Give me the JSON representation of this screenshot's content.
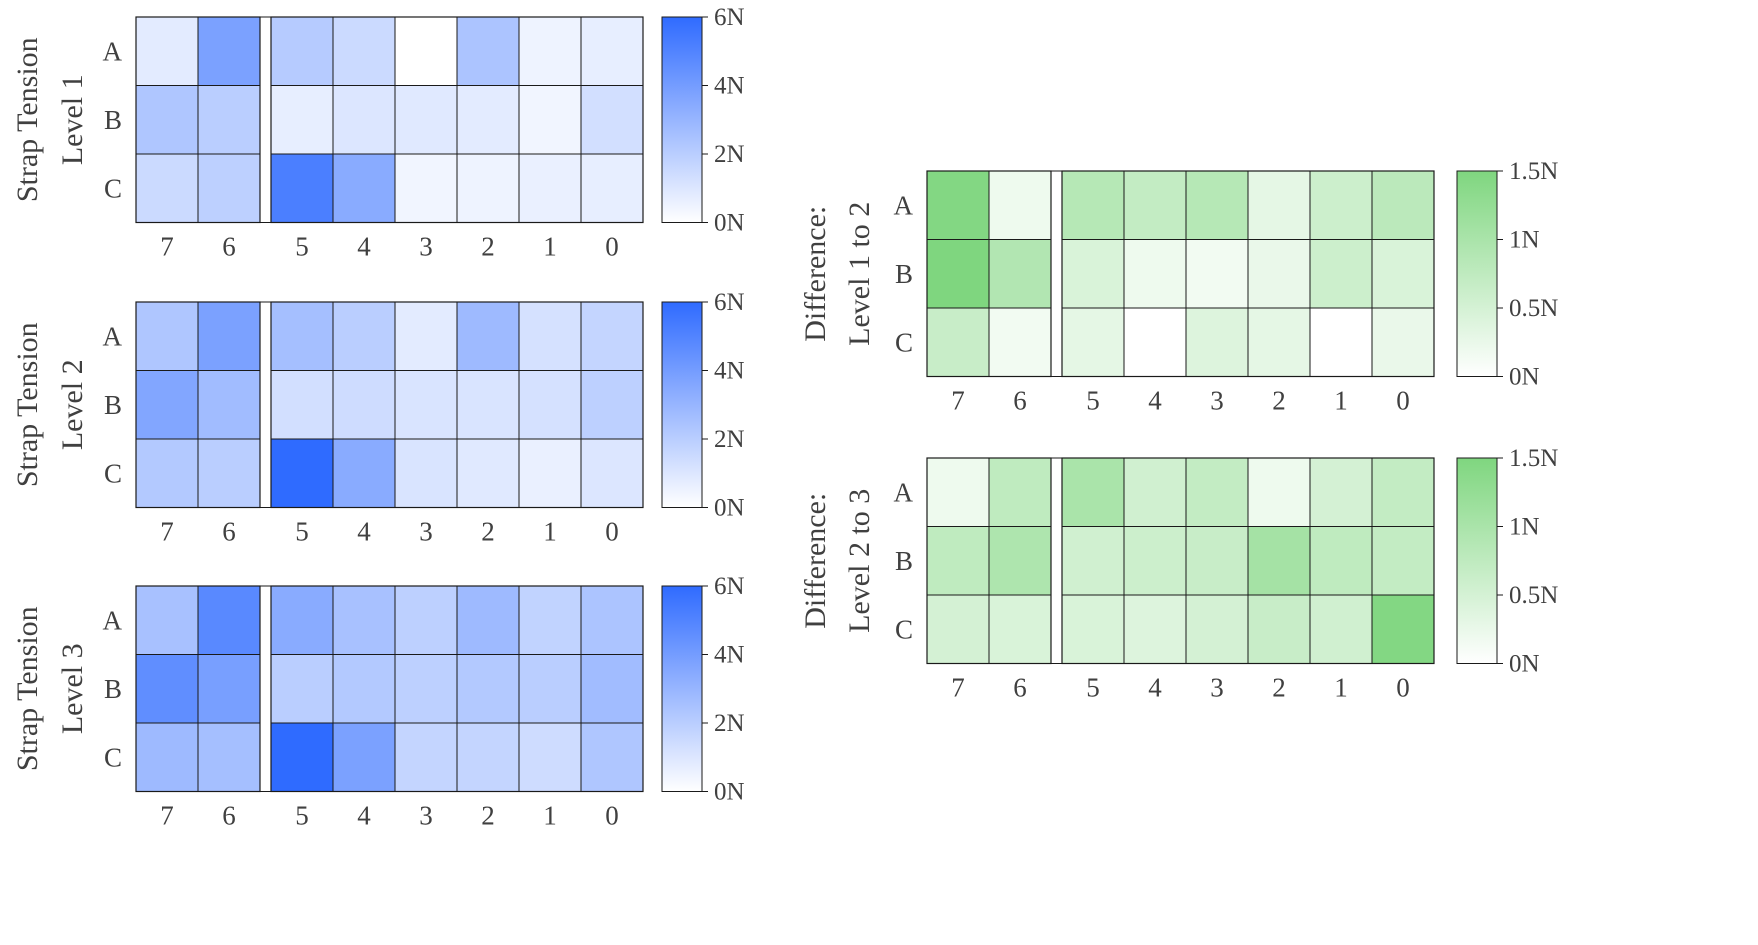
{
  "colors": {
    "tension_max": "#2f6bff",
    "difference_max": "#7fd67f",
    "min": "#ffffff",
    "cell_border": "#1a1a1a",
    "text": "#404040"
  },
  "chart_data": [
    {
      "type": "heatmap",
      "ylabel_lines": [
        "Strap Tension",
        "Level 1"
      ],
      "rows": [
        "A",
        "B",
        "C"
      ],
      "columns": [
        "7",
        "6",
        "5",
        "4",
        "3",
        "2",
        "1",
        "0"
      ],
      "gap_after_column": 1,
      "values": [
        [
          0.8,
          3.8,
          2.1,
          1.5,
          0.0,
          2.4,
          0.5,
          0.7
        ],
        [
          2.3,
          2.0,
          0.7,
          1.0,
          0.9,
          0.8,
          0.4,
          1.3
        ],
        [
          1.5,
          1.9,
          5.2,
          3.4,
          0.4,
          0.5,
          0.6,
          0.7
        ]
      ],
      "colorbar": {
        "range": [
          0,
          6
        ],
        "ticks": [
          "0N",
          "2N",
          "4N",
          "6N"
        ],
        "color_max": "#2f6bff"
      }
    },
    {
      "type": "heatmap",
      "ylabel_lines": [
        "Strap Tension",
        "Level 2"
      ],
      "rows": [
        "A",
        "B",
        "C"
      ],
      "columns": [
        "7",
        "6",
        "5",
        "4",
        "3",
        "2",
        "1",
        "0"
      ],
      "gap_after_column": 1,
      "values": [
        [
          2.3,
          3.8,
          2.6,
          2.0,
          0.8,
          2.8,
          1.2,
          1.7
        ],
        [
          3.6,
          2.7,
          1.3,
          1.4,
          1.1,
          1.1,
          1.2,
          1.9
        ],
        [
          2.2,
          2.0,
          6.0,
          3.4,
          1.1,
          0.9,
          0.6,
          1.0
        ]
      ],
      "colorbar": {
        "range": [
          0,
          6
        ],
        "ticks": [
          "0N",
          "2N",
          "4N",
          "6N"
        ],
        "color_max": "#2f6bff"
      }
    },
    {
      "type": "heatmap",
      "ylabel_lines": [
        "Strap Tension",
        "Level 3"
      ],
      "rows": [
        "A",
        "B",
        "C"
      ],
      "columns": [
        "7",
        "6",
        "5",
        "4",
        "3",
        "2",
        "1",
        "0"
      ],
      "gap_after_column": 1,
      "values": [
        [
          2.5,
          4.8,
          3.4,
          2.5,
          1.9,
          2.8,
          1.8,
          2.4
        ],
        [
          4.6,
          3.9,
          2.0,
          2.2,
          1.9,
          2.2,
          2.0,
          2.7
        ],
        [
          2.8,
          2.6,
          6.0,
          3.8,
          1.7,
          1.7,
          1.4,
          2.3
        ]
      ],
      "colorbar": {
        "range": [
          0,
          6
        ],
        "ticks": [
          "0N",
          "2N",
          "4N",
          "6N"
        ],
        "color_max": "#2f6bff"
      }
    },
    {
      "type": "heatmap",
      "ylabel_lines": [
        "Difference:",
        "Level 1 to 2"
      ],
      "rows": [
        "A",
        "B",
        "C"
      ],
      "columns": [
        "7",
        "6",
        "5",
        "4",
        "3",
        "2",
        "1",
        "0"
      ],
      "gap_after_column": 1,
      "values": [
        [
          1.45,
          0.2,
          0.85,
          0.7,
          0.85,
          0.3,
          0.6,
          0.8
        ],
        [
          1.5,
          0.9,
          0.45,
          0.2,
          0.15,
          0.25,
          0.6,
          0.45
        ],
        [
          0.65,
          0.15,
          0.3,
          0.0,
          0.4,
          0.3,
          0.0,
          0.25
        ]
      ],
      "colorbar": {
        "range": [
          0,
          1.5
        ],
        "ticks": [
          "0N",
          "0.5N",
          "1N",
          "1.5N"
        ],
        "color_max": "#7fd67f"
      }
    },
    {
      "type": "heatmap",
      "ylabel_lines": [
        "Difference:",
        "Level 2 to 3"
      ],
      "rows": [
        "A",
        "B",
        "C"
      ],
      "columns": [
        "7",
        "6",
        "5",
        "4",
        "3",
        "2",
        "1",
        "0"
      ],
      "gap_after_column": 1,
      "values": [
        [
          0.2,
          0.75,
          1.0,
          0.55,
          0.7,
          0.2,
          0.5,
          0.7
        ],
        [
          0.75,
          0.95,
          0.55,
          0.6,
          0.65,
          1.05,
          0.75,
          0.7
        ],
        [
          0.5,
          0.45,
          0.45,
          0.4,
          0.5,
          0.65,
          0.55,
          1.45
        ]
      ],
      "colorbar": {
        "range": [
          0,
          1.5
        ],
        "ticks": [
          "0N",
          "0.5N",
          "1N",
          "1.5N"
        ],
        "color_max": "#7fd67f"
      }
    }
  ]
}
